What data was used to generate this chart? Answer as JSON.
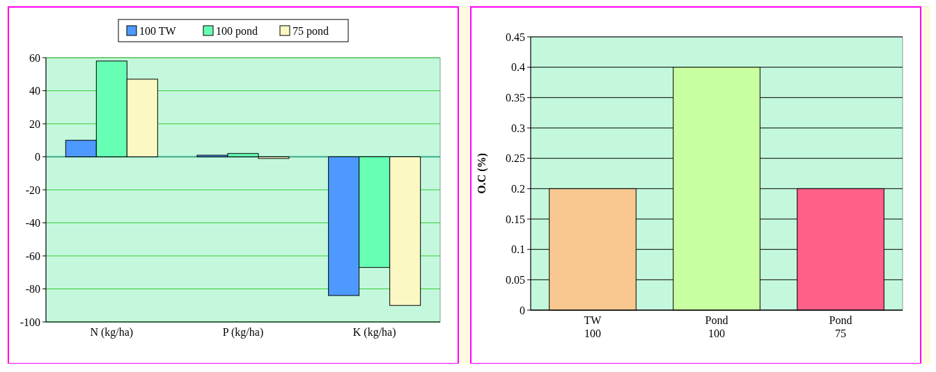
{
  "chart_data": [
    {
      "type": "bar",
      "categories": [
        "N (kg/ha)",
        "P (kg/ha)",
        "K (kg/ha)"
      ],
      "series": [
        {
          "name": "100 TW",
          "color": "#4d99ff",
          "values": [
            10,
            1,
            -84
          ]
        },
        {
          "name": "100 pond",
          "color": "#66ffb3",
          "values": [
            58,
            2,
            -67
          ]
        },
        {
          "name": "75 pond",
          "color": "#fbf8c4",
          "values": [
            47,
            -1,
            -90
          ]
        }
      ],
      "ylim": [
        -100,
        60
      ],
      "yticks": [
        -100,
        -80,
        -60,
        -40,
        -20,
        0,
        20,
        40,
        60
      ],
      "grid": "y",
      "legend": "top",
      "ref_lines": [
        {
          "axis": "y",
          "value": 0,
          "color": "#3aaa88"
        }
      ]
    },
    {
      "type": "bar",
      "categories": [
        "TW\n100",
        "Pond\n100",
        "Pond\n75"
      ],
      "values": [
        0.2,
        0.4,
        0.2
      ],
      "colors": [
        "#f8c890",
        "#c8ffa0",
        "#ff6088"
      ],
      "ylabel": "O.C (%)",
      "ylim": [
        0,
        0.45
      ],
      "yticks": [
        0,
        0.05,
        0.1,
        0.15,
        0.2,
        0.25,
        0.3,
        0.35,
        0.4,
        0.45
      ],
      "grid": "y"
    }
  ]
}
